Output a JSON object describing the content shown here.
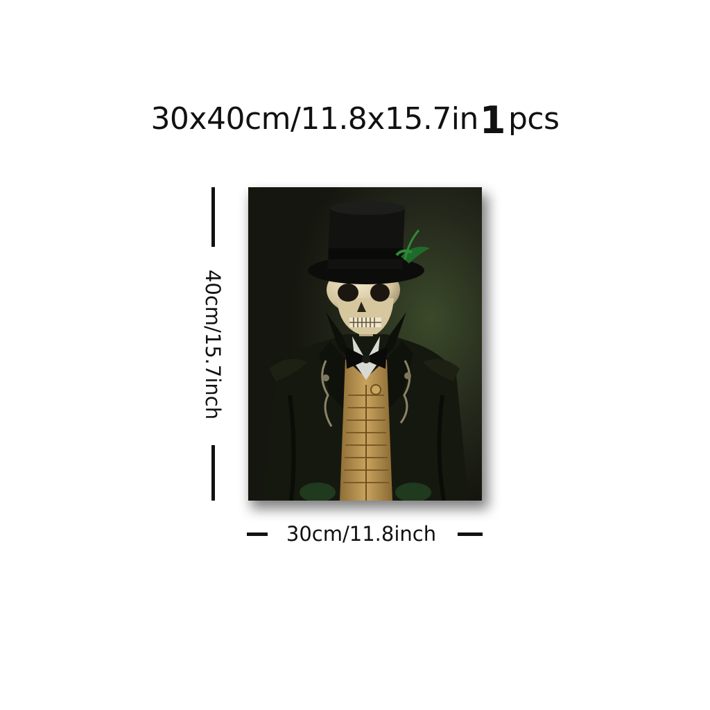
{
  "title": {
    "size_text": "30x40cm/11.8x15.7in",
    "quantity": "1",
    "unit": "pcs"
  },
  "dimensions": {
    "height_label": "40cm/15.7inch",
    "width_label": "30cm/11.8inch"
  },
  "colors": {
    "background": "#ffffff",
    "text": "#111111",
    "painting_bg": "#1c1d16",
    "vest": "#b8934f",
    "skull": "#e4d8b8",
    "feather": "#1f6b2a"
  }
}
